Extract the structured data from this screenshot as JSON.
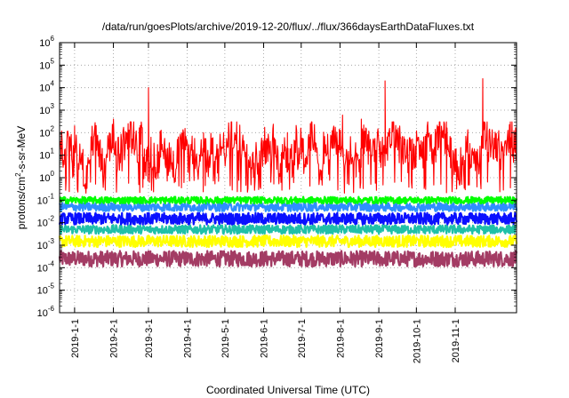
{
  "chart_data": {
    "type": "line",
    "title": "/data/run/goesPlots/archive/2019-12-20/flux/../flux/366daysEarthDataFluxes.txt",
    "xlabel": "Coordinated Universal Time (UTC)",
    "ylabel": "protons/cm2-s-sr-MeV",
    "ylabel_parts": {
      "base": "protons/cm",
      "sup": "2",
      "rest": "-s-sr-MeV"
    },
    "yscale": "log",
    "ylim": [
      1e-06,
      1000000.0
    ],
    "xlim": [
      "2018-12-20",
      "2019-12-20"
    ],
    "grid": true,
    "y_ticks": [
      {
        "base": "10",
        "exp": "-6"
      },
      {
        "base": "10",
        "exp": "-5"
      },
      {
        "base": "10",
        "exp": "-4"
      },
      {
        "base": "10",
        "exp": "-3"
      },
      {
        "base": "10",
        "exp": "-2"
      },
      {
        "base": "10",
        "exp": "-1"
      },
      {
        "base": "10",
        "exp": "0"
      },
      {
        "base": "10",
        "exp": "1"
      },
      {
        "base": "10",
        "exp": "2"
      },
      {
        "base": "10",
        "exp": "3"
      },
      {
        "base": "10",
        "exp": "4"
      },
      {
        "base": "10",
        "exp": "5"
      },
      {
        "base": "10",
        "exp": "6"
      }
    ],
    "x_ticks": [
      {
        "date": "2019-01-01",
        "label": "2019-1-1"
      },
      {
        "date": "2019-02-01",
        "label": "2019-2-1"
      },
      {
        "date": "2019-03-01",
        "label": "2019-3-1"
      },
      {
        "date": "2019-04-01",
        "label": "2019-4-1"
      },
      {
        "date": "2019-05-01",
        "label": "2019-5-1"
      },
      {
        "date": "2019-06-01",
        "label": "2019-6-1"
      },
      {
        "date": "2019-07-01",
        "label": "2019-7-1"
      },
      {
        "date": "2019-08-01",
        "label": "2019-8-1"
      },
      {
        "date": "2019-09-01",
        "label": "2019-9-1"
      },
      {
        "date": "2019-10-01",
        "label": "2019-10-1"
      },
      {
        "date": "2019-11-01",
        "label": "2019-11-1"
      }
    ],
    "series": [
      {
        "color": "#a33c64",
        "typical": 0.00025,
        "low": 0.0001,
        "high": 0.0006
      },
      {
        "color": "#ffff00",
        "typical": 0.0015,
        "low": 0.0008,
        "high": 0.003
      },
      {
        "color": "#1fc0a8",
        "typical": 0.005,
        "low": 0.003,
        "high": 0.008
      },
      {
        "color": "#0a10ff",
        "typical": 0.015,
        "low": 0.008,
        "high": 0.03
      },
      {
        "color": "#2f8fff",
        "typical": 0.05,
        "low": 0.03,
        "high": 0.08
      },
      {
        "color": "#00ff00",
        "typical": 0.1,
        "low": 0.07,
        "high": 0.15
      },
      {
        "color": "#ff0000",
        "typical": 20,
        "low": 0.2,
        "high": 300,
        "peaks": [
          {
            "x": "2019-01-01",
            "y": 200
          },
          {
            "x": "2019-02-01",
            "y": 400
          },
          {
            "x": "2019-03-01",
            "y": 10000
          },
          {
            "x": "2019-04-14",
            "y": 100
          },
          {
            "x": "2019-06-20",
            "y": 100
          },
          {
            "x": "2019-07-07",
            "y": 80
          },
          {
            "x": "2019-07-26",
            "y": 100
          },
          {
            "x": "2019-08-03",
            "y": 600
          },
          {
            "x": "2019-08-18",
            "y": 400
          },
          {
            "x": "2019-09-06",
            "y": 20000
          },
          {
            "x": "2019-10-25",
            "y": 300
          },
          {
            "x": "2019-11-23",
            "y": 25000
          },
          {
            "x": "2019-12-15",
            "y": 300
          }
        ]
      }
    ]
  }
}
